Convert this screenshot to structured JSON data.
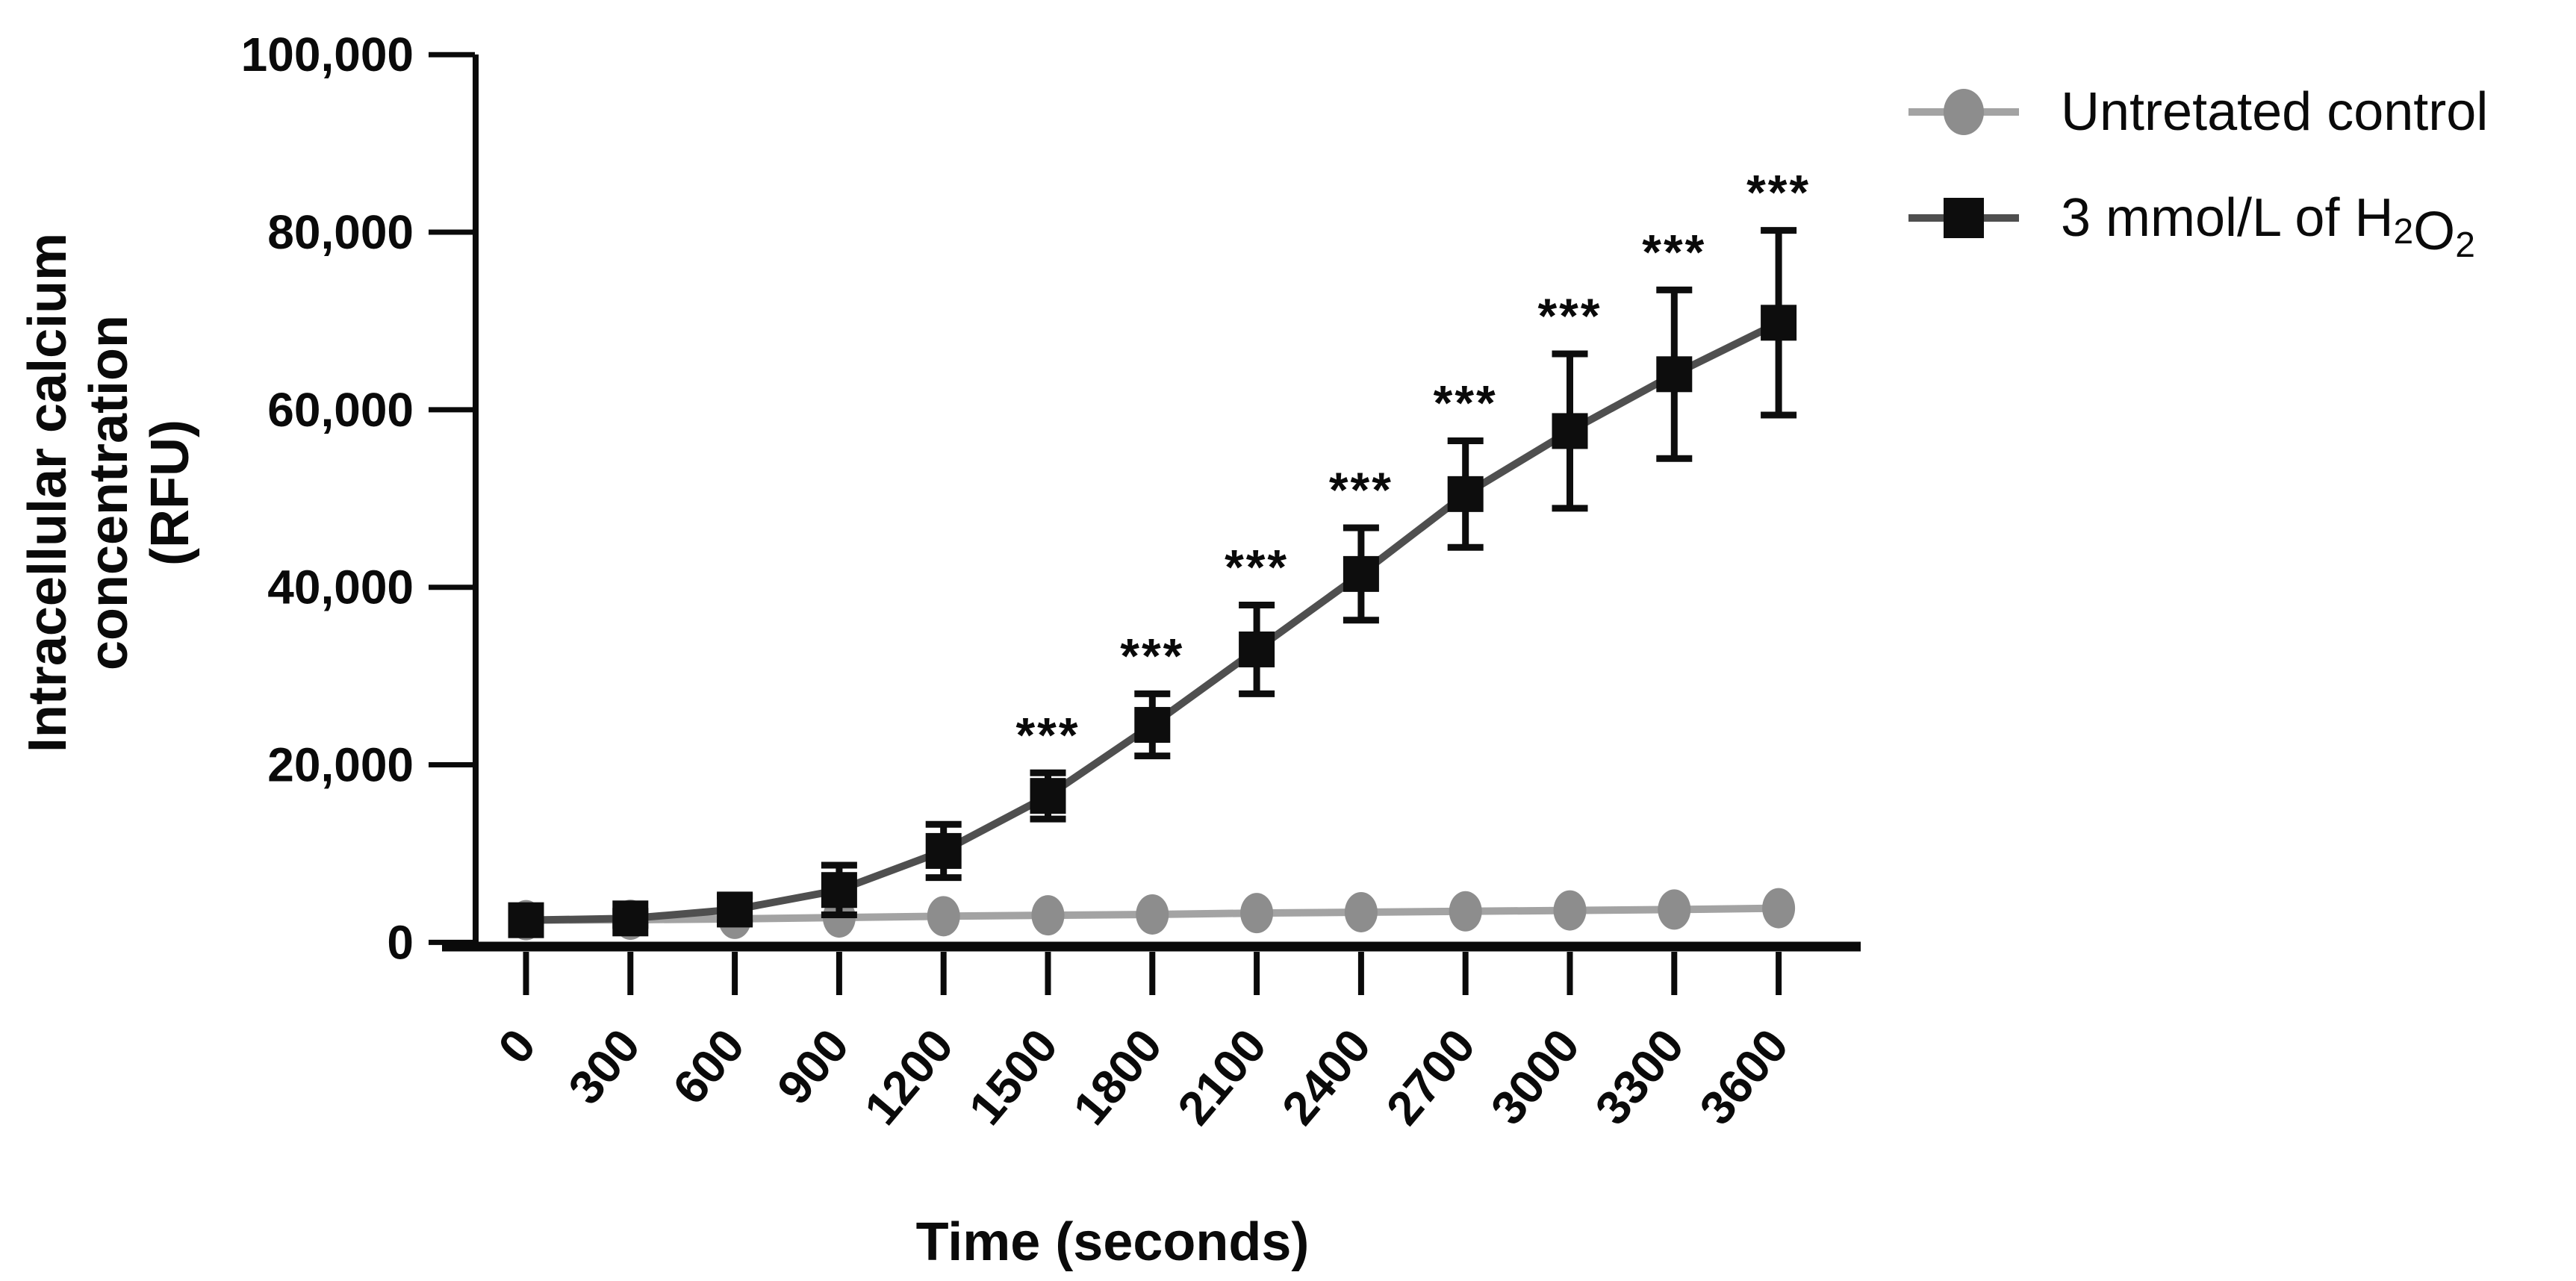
{
  "figure": {
    "background": "#ffffff",
    "text_color": "#0a0a0a"
  },
  "chart_data": {
    "type": "line",
    "title": "",
    "xlabel": "Time (seconds)",
    "ylabel_lines": [
      "Intracellular calcium",
      "concentration",
      "(RFU)"
    ],
    "x": [
      0,
      300,
      600,
      900,
      1200,
      1500,
      1800,
      2100,
      2400,
      2700,
      3000,
      3300,
      3600
    ],
    "xtick_labels": [
      "0",
      "300",
      "600",
      "900",
      "1200",
      "1500",
      "1800",
      "2100",
      "2400",
      "2700",
      "3000",
      "3300",
      "3600"
    ],
    "xlim": [
      0,
      3600
    ],
    "ylim": [
      0,
      100000
    ],
    "ytick_values": [
      0,
      20000,
      40000,
      60000,
      80000,
      100000
    ],
    "ytick_labels": [
      "0",
      "20,000",
      "40,000",
      "60,000",
      "80,000",
      "100,000"
    ],
    "grid": false,
    "legend_position": "top-right",
    "significance_symbol": "***",
    "series": [
      {
        "name": "Untretated control",
        "marker": "circle",
        "line_color": "#a3a3a3",
        "marker_color": "#8d8d8d",
        "values": [
          2500,
          2550,
          2650,
          2800,
          2950,
          3050,
          3150,
          3300,
          3400,
          3500,
          3600,
          3700,
          3850
        ],
        "error": [
          0,
          0,
          0,
          0,
          0,
          0,
          0,
          0,
          0,
          0,
          0,
          0,
          0
        ],
        "significance": [
          "",
          "",
          "",
          "",
          "",
          "",
          "",
          "",
          "",
          "",
          "",
          "",
          ""
        ]
      },
      {
        "name": "3 mmol/L of H2O2",
        "marker": "square",
        "line_color": "#4f4f4f",
        "marker_color": "#0d0d0d",
        "error_color": "#0d0d0d",
        "values": [
          2500,
          2700,
          3700,
          5900,
          10300,
          16500,
          24500,
          33000,
          41500,
          50500,
          57600,
          64000,
          69800
        ],
        "error": [
          700,
          800,
          1500,
          2800,
          3000,
          2600,
          3500,
          5000,
          5200,
          6000,
          8700,
          9500,
          10400
        ],
        "significance": [
          "",
          "",
          "",
          "",
          "",
          "***",
          "***",
          "***",
          "***",
          "***",
          "***",
          "***",
          "***"
        ]
      }
    ],
    "legend": [
      {
        "label": "Untretated control",
        "label_parts": [
          {
            "t": "Untretated control"
          }
        ]
      },
      {
        "label": "3 mmol/L of H2O2",
        "label_parts": [
          {
            "t": "3 mmol/L of H"
          },
          {
            "t": "2",
            "sub": true
          },
          {
            "t": "O"
          },
          {
            "t": "2",
            "sub": true
          }
        ]
      }
    ]
  }
}
